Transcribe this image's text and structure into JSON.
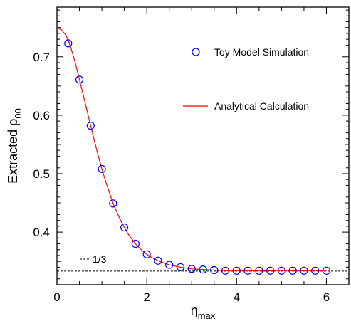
{
  "chart_data": {
    "type": "scatter",
    "title": "",
    "xlabel": {
      "base": "η",
      "sub": "max"
    },
    "ylabel": {
      "base": "Extracted ρ",
      "sub": "00"
    },
    "xlim": [
      0,
      6.5
    ],
    "ylim": [
      0.31,
      0.785
    ],
    "x_ticks": [
      0,
      2,
      4,
      6
    ],
    "x_tick_labels": [
      "0",
      "2",
      "4",
      "6"
    ],
    "y_ticks": [
      0.4,
      0.5,
      0.6,
      0.7
    ],
    "y_tick_labels": [
      "0.4",
      "0.5",
      "0.6",
      "0.7"
    ],
    "grid": false,
    "legend_position": "top-right",
    "series": [
      {
        "name": "Toy Model Simulation",
        "kind": "markers",
        "marker": "open-circle",
        "color": "#0000ff",
        "x": [
          0.25,
          0.5,
          0.75,
          1.0,
          1.25,
          1.5,
          1.75,
          2.0,
          2.25,
          2.5,
          2.75,
          3.0,
          3.25,
          3.5,
          3.75,
          4.0,
          4.25,
          4.5,
          4.75,
          5.0,
          5.25,
          5.5,
          5.75,
          6.0
        ],
        "y": [
          0.723,
          0.661,
          0.582,
          0.508,
          0.449,
          0.408,
          0.38,
          0.362,
          0.351,
          0.344,
          0.34,
          0.337,
          0.336,
          0.335,
          0.334,
          0.334,
          0.334,
          0.334,
          0.334,
          0.334,
          0.334,
          0.334,
          0.334,
          0.334
        ]
      },
      {
        "name": "Analytical Calculation",
        "kind": "line",
        "color": "#ff0000",
        "x": [
          0.0,
          0.1,
          0.2,
          0.3,
          0.4,
          0.5,
          0.6,
          0.75,
          0.9,
          1.0,
          1.1,
          1.25,
          1.4,
          1.5,
          1.6,
          1.75,
          1.9,
          2.0,
          2.1,
          2.25,
          2.5,
          2.75,
          3.0,
          3.25,
          3.5,
          3.75,
          4.0,
          4.5,
          5.0,
          5.5,
          6.0
        ],
        "y": [
          0.75,
          0.746,
          0.737,
          0.718,
          0.692,
          0.661,
          0.63,
          0.582,
          0.536,
          0.508,
          0.483,
          0.449,
          0.423,
          0.408,
          0.395,
          0.38,
          0.368,
          0.362,
          0.357,
          0.351,
          0.344,
          0.34,
          0.337,
          0.336,
          0.335,
          0.334,
          0.334,
          0.334,
          0.334,
          0.334,
          0.334
        ]
      }
    ],
    "reference_line": {
      "y": 0.3333,
      "style": "dashed",
      "color": "#000000",
      "label": "1/3"
    }
  }
}
